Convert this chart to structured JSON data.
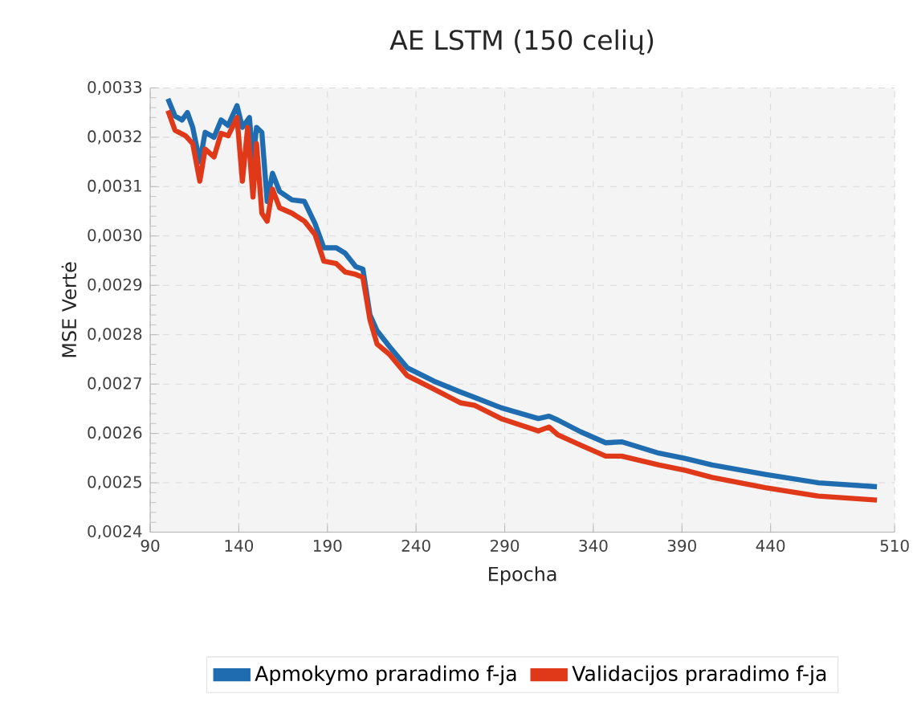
{
  "chart_data": {
    "type": "line",
    "title": "AE LSTM (150  celių)",
    "xlabel": "Epocha",
    "ylabel": "MSE Vertė",
    "xlim": [
      90,
      510
    ],
    "xticks": [
      90,
      140,
      190,
      240,
      290,
      340,
      390,
      440,
      510
    ],
    "ylim": [
      0.0024,
      0.0033
    ],
    "yticks": [
      {
        "value": 0.0024,
        "label": "0,0024"
      },
      {
        "value": 0.0025,
        "label": "0,0025"
      },
      {
        "value": 0.0026,
        "label": "0,0026"
      },
      {
        "value": 0.0027,
        "label": "0,0027"
      },
      {
        "value": 0.0028,
        "label": "0,0028"
      },
      {
        "value": 0.0029,
        "label": "0,0029"
      },
      {
        "value": 0.003,
        "label": "0,0030"
      },
      {
        "value": 0.0031,
        "label": "0,0031"
      },
      {
        "value": 0.0032,
        "label": "0,0032"
      },
      {
        "value": 0.0033,
        "label": "0,0033"
      }
    ],
    "grid": true,
    "legend": "bottom",
    "series": [
      {
        "name": "Apmokymo praradimo f-ja",
        "color": "#1f6db0",
        "x": [
          100,
          104,
          108,
          111,
          114,
          118,
          121,
          126,
          130,
          134,
          139,
          142,
          146,
          148,
          150,
          153,
          156,
          159,
          163,
          170,
          177,
          183,
          188,
          195,
          200,
          206,
          210,
          214,
          218,
          225,
          235,
          250,
          265,
          273,
          288,
          309,
          315,
          320,
          333,
          347,
          356,
          377,
          392,
          407,
          437,
          467,
          500
        ],
        "values": [
          0.003278,
          0.003243,
          0.003235,
          0.00325,
          0.00322,
          0.00315,
          0.00321,
          0.0032,
          0.003235,
          0.003224,
          0.003264,
          0.00322,
          0.00324,
          0.003154,
          0.00322,
          0.00321,
          0.00307,
          0.003127,
          0.00309,
          0.003073,
          0.00307,
          0.003025,
          0.002976,
          0.002976,
          0.002965,
          0.002938,
          0.002933,
          0.00284,
          0.002808,
          0.002776,
          0.002733,
          0.002706,
          0.002684,
          0.002673,
          0.002652,
          0.00263,
          0.002635,
          0.002627,
          0.002603,
          0.002581,
          0.002583,
          0.00256,
          0.002549,
          0.002536,
          0.002517,
          0.0025,
          0.002492
        ]
      },
      {
        "name": "Validacijos praradimo f-ja",
        "color": "#e0391a",
        "x": [
          100,
          104,
          110,
          114,
          118,
          121,
          126,
          130,
          134,
          139,
          142,
          145,
          148,
          150,
          153,
          156,
          159,
          163,
          170,
          177,
          183,
          188,
          195,
          200,
          206,
          210,
          214,
          218,
          225,
          235,
          250,
          265,
          273,
          288,
          309,
          315,
          320,
          333,
          347,
          356,
          377,
          392,
          407,
          437,
          467,
          500
        ],
        "values": [
          0.003254,
          0.003214,
          0.003203,
          0.003187,
          0.003111,
          0.003176,
          0.00316,
          0.003208,
          0.003203,
          0.00324,
          0.003111,
          0.00322,
          0.003079,
          0.003187,
          0.003046,
          0.00303,
          0.003095,
          0.003057,
          0.003046,
          0.00303,
          0.003003,
          0.002949,
          0.002944,
          0.002927,
          0.002922,
          0.002916,
          0.00283,
          0.002781,
          0.00276,
          0.002717,
          0.00269,
          0.002662,
          0.002657,
          0.00263,
          0.002605,
          0.002613,
          0.002597,
          0.002576,
          0.002554,
          0.002554,
          0.002536,
          0.002525,
          0.002511,
          0.00249,
          0.002473,
          0.002465
        ]
      }
    ]
  }
}
